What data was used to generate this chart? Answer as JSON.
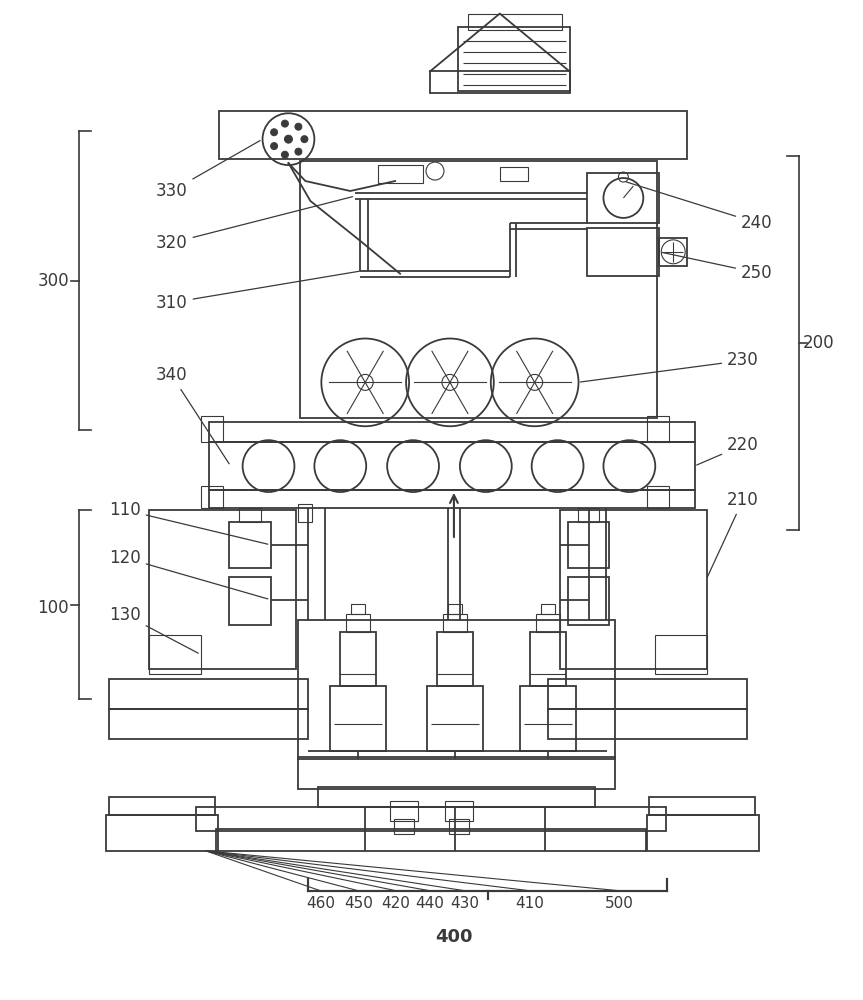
{
  "bg_color": "#ffffff",
  "line_color": "#3a3a3a",
  "lw": 1.3,
  "tlw": 0.8,
  "fig_width": 8.63,
  "fig_height": 10.0,
  "dpi": 100
}
